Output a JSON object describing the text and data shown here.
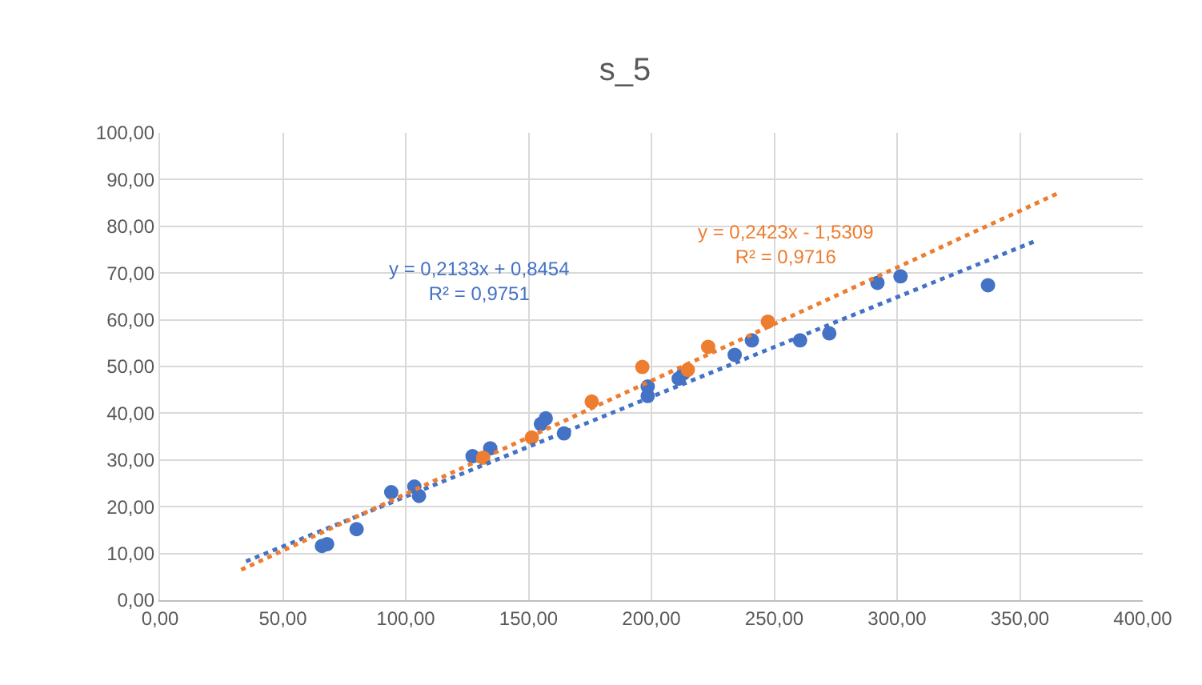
{
  "chart_data": {
    "type": "scatter",
    "title": "s_5",
    "series": [
      {
        "color": "#4472c4",
        "x": [
          65.9,
          68.0,
          80.0,
          94.1,
          103.5,
          105.4,
          127.2,
          134.4,
          155.0,
          157.0,
          164.4,
          198.5,
          198.5,
          211.1,
          213.0,
          233.9,
          240.9,
          260.5,
          272.4,
          292.0,
          301.4,
          337.0
        ],
        "values": [
          11.6,
          12.0,
          15.2,
          23.1,
          24.3,
          22.3,
          30.8,
          32.5,
          37.7,
          38.9,
          35.7,
          45.7,
          43.7,
          47.4,
          48.5,
          52.5,
          55.6,
          55.6,
          57.1,
          67.9,
          69.3,
          67.4
        ]
      },
      {
        "color": "#ed7d31",
        "x": [
          131.5,
          151.3,
          175.7,
          196.3,
          214.8,
          223.1,
          247.4
        ],
        "values": [
          30.5,
          34.8,
          42.5,
          49.9,
          49.3,
          54.2,
          59.6
        ]
      },
      {
        "type": "line",
        "marker": "none",
        "line_style": "dotted",
        "color": "#4472c4",
        "x": [
          35,
          357
        ],
        "values": [
          8.3,
          77.0
        ]
      },
      {
        "type": "line",
        "marker": "none",
        "line_style": "dotted",
        "color": "#ed7d31",
        "x": [
          33,
          366
        ],
        "values": [
          6.5,
          87.2
        ]
      }
    ],
    "annotations": [
      "y = 0,2133x + 0,8454\nR² = 0,9751",
      "y = 0,2423x - 1,5309\nR² = 0,9716"
    ],
    "marker": "circle",
    "grid": true,
    "xlim": [
      0,
      400
    ],
    "xticks": [
      {
        "value": 0,
        "label": "0,00"
      },
      {
        "value": 50,
        "label": "50,00"
      },
      {
        "value": 100,
        "label": "100,00"
      },
      {
        "value": 150,
        "label": "150,00"
      },
      {
        "value": 200,
        "label": "200,00"
      },
      {
        "value": 250,
        "label": "250,00"
      },
      {
        "value": 300,
        "label": "300,00"
      },
      {
        "value": 350,
        "label": "350,00"
      },
      {
        "value": 400,
        "label": "400,00"
      }
    ],
    "ylim": [
      0,
      100
    ],
    "yticks": [
      {
        "value": 0,
        "label": "0,00"
      },
      {
        "value": 10,
        "label": "10,00"
      },
      {
        "value": 20,
        "label": "20,00"
      },
      {
        "value": 30,
        "label": "30,00"
      },
      {
        "value": 40,
        "label": "40,00"
      },
      {
        "value": 50,
        "label": "50,00"
      },
      {
        "value": 60,
        "label": "60,00"
      },
      {
        "value": 70,
        "label": "70,00"
      },
      {
        "value": 80,
        "label": "80,00"
      },
      {
        "value": 90,
        "label": "90,00"
      },
      {
        "value": 100,
        "label": "100,00"
      }
    ]
  }
}
